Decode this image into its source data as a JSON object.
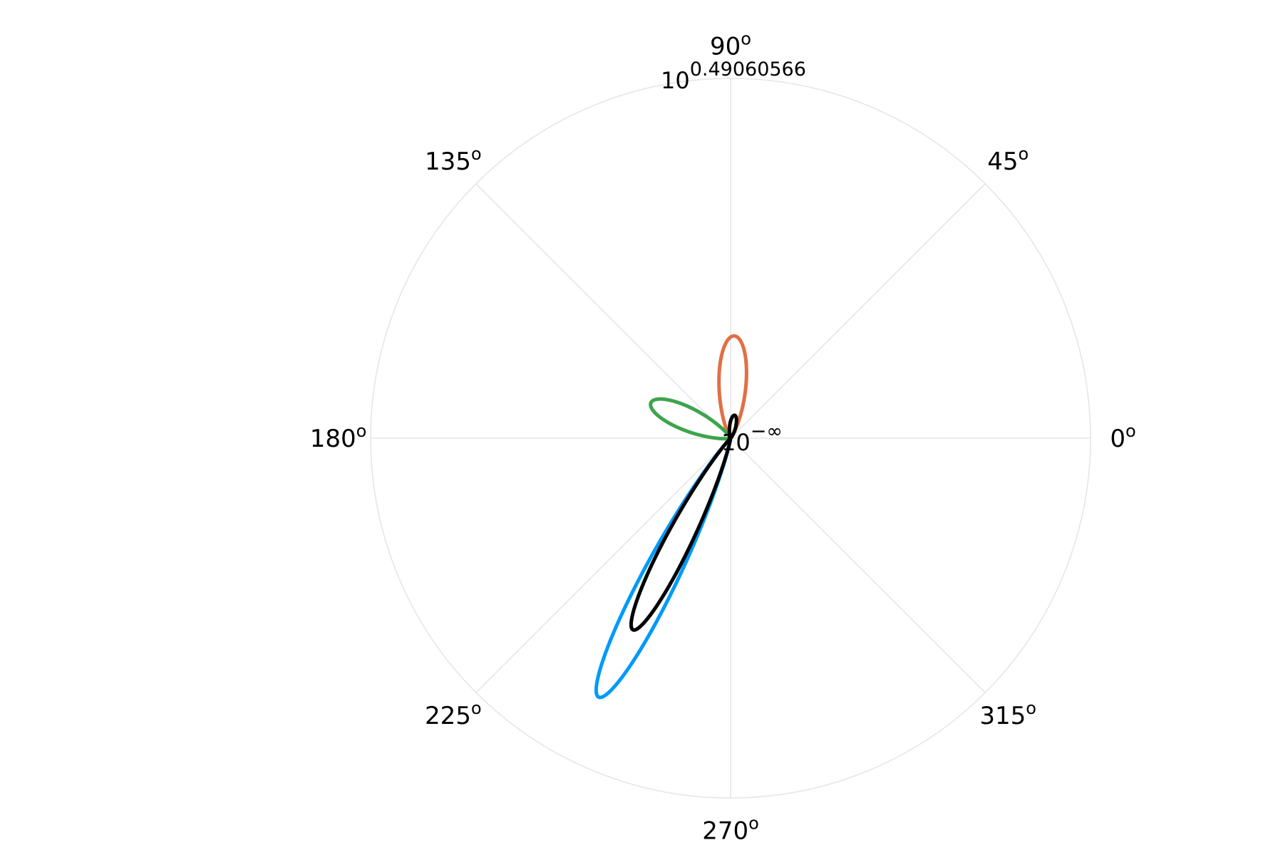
{
  "chart_data": {
    "type": "polar-line",
    "title": "",
    "angular_ticks": [
      {
        "deg": 0,
        "base": "0",
        "sup": "o"
      },
      {
        "deg": 45,
        "base": "45",
        "sup": "o"
      },
      {
        "deg": 90,
        "base": "90",
        "sup": "o"
      },
      {
        "deg": 135,
        "base": "135",
        "sup": "o"
      },
      {
        "deg": 180,
        "base": "180",
        "sup": "o"
      },
      {
        "deg": 225,
        "base": "225",
        "sup": "o"
      },
      {
        "deg": 270,
        "base": "270",
        "sup": "o"
      },
      {
        "deg": 315,
        "base": "315",
        "sup": "o"
      }
    ],
    "radial_ticks": [
      {
        "base": "10",
        "exp": "−∞",
        "position": "center"
      },
      {
        "base": "10",
        "exp": "0.49060566",
        "position": "outer"
      }
    ],
    "r_max": 3.095,
    "grid": true,
    "legend": false,
    "series": [
      {
        "color": "#009af9",
        "lobe_angle_deg": 243,
        "lobe_max": 2.5,
        "exponent": 100
      },
      {
        "color": "#e26f46",
        "lobe_angle_deg": 88,
        "lobe_max": 0.88,
        "exponent": 20
      },
      {
        "color": "#3da44d",
        "lobe_angle_deg": 156,
        "lobe_max": 0.75,
        "exponent": 20
      },
      {
        "color": "#000000",
        "lobe_angle_deg": 243,
        "lobe_max": 1.85,
        "exponent": 100,
        "secondary_angle_deg": 80,
        "secondary_max": 0.2,
        "secondary_exponent": 20
      }
    ]
  }
}
